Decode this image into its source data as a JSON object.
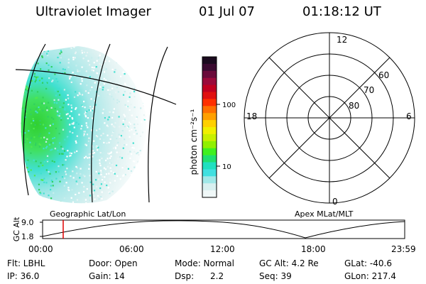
{
  "header": {
    "title": "Ultraviolet Imager",
    "date": "01 Jul 07",
    "time": "01:18:12 UT"
  },
  "colorbar": {
    "label": "photon cm⁻²s⁻¹",
    "ticks": [
      "100",
      "10"
    ],
    "colors_top_to_bottom": [
      "#1a0a1e",
      "#3a0a30",
      "#6a0a3a",
      "#9a0a3a",
      "#c00020",
      "#e01010",
      "#ff3000",
      "#ff7000",
      "#ffa000",
      "#ffd000",
      "#f0f000",
      "#c8f000",
      "#90f000",
      "#40f020",
      "#20e070",
      "#20e0c0",
      "#40e0e0",
      "#a0e8e8",
      "#d8f0f0",
      "#f0f8f8"
    ]
  },
  "polar": {
    "labels": {
      "top": "12",
      "bottom": "0",
      "left": "18",
      "right": "6",
      "r60": "60",
      "r70": "70",
      "r80": "80"
    }
  },
  "altitude_panel": {
    "ylabel": "GC Alt",
    "yticks": [
      "9.0",
      "1.8"
    ],
    "left_caption": "Geographic Lat/Lon",
    "right_caption": "Apex MLat/MLT",
    "xticks": [
      "00:00",
      "06:00",
      "12:00",
      "18:00",
      "23:59"
    ],
    "marker_color": "#e00000"
  },
  "footer": {
    "flt": "Flt: LBHL",
    "ip": "IP: 36.0",
    "door": "Door: Open",
    "gain": "Gain: 14",
    "mode": "Mode: Normal",
    "dsp_label": "Dsp:",
    "dsp_value": "2.2",
    "gcalt": "GC Alt: 4.2 Re",
    "seq": "Seq: 39",
    "glat": "GLat: -40.6",
    "glon": "GLon: 217.4"
  }
}
